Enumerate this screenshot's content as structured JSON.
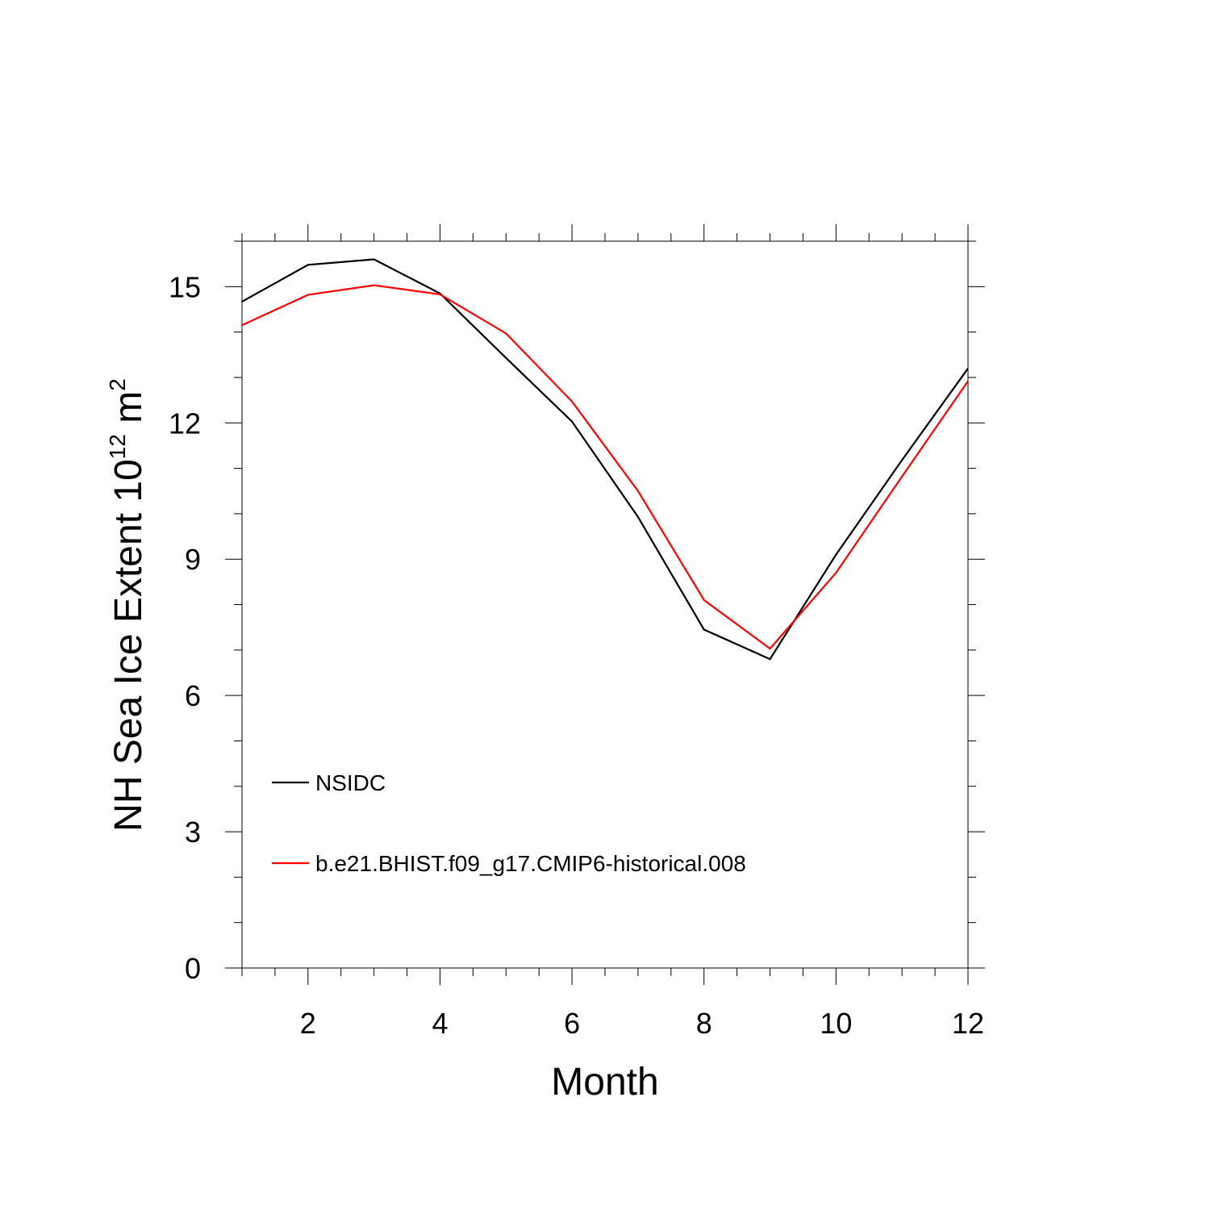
{
  "chart_data": {
    "type": "line",
    "xlabel": "Month",
    "ylabel": {
      "prefix": "NH Sea Ice Extent 10",
      "sup1": "12",
      "mid": " m",
      "sup2": "2"
    },
    "xlim": [
      1,
      12
    ],
    "ylim": [
      0,
      16
    ],
    "xticks": [
      2,
      4,
      6,
      8,
      10,
      12
    ],
    "yticks": [
      0,
      3,
      6,
      9,
      12,
      15
    ],
    "grid": false,
    "legend_position": "left",
    "x": [
      1,
      2,
      3,
      4,
      5,
      6,
      7,
      8,
      9,
      10,
      11,
      12
    ],
    "series": [
      {
        "name": "NSIDC",
        "color": "#000000",
        "values": [
          14.67,
          15.48,
          15.6,
          14.85,
          13.43,
          12.03,
          9.93,
          7.45,
          6.8,
          9.1,
          11.18,
          13.2
        ]
      },
      {
        "name": "b.e21.BHIST.f09_g17.CMIP6-historical.008",
        "color": "#ff0000",
        "values": [
          14.15,
          14.82,
          15.03,
          14.83,
          13.97,
          12.47,
          10.5,
          8.1,
          7.03,
          8.7,
          10.82,
          12.92
        ]
      }
    ]
  }
}
